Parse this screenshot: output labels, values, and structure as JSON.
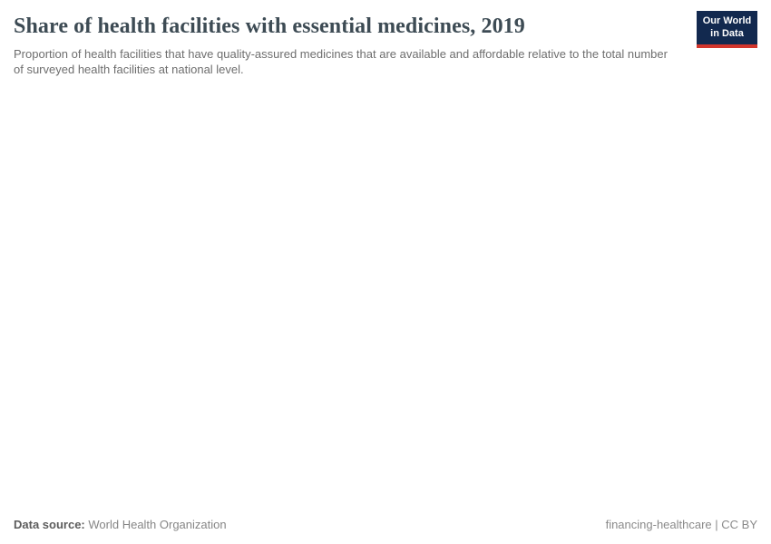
{
  "header": {
    "title": "Share of health facilities with essential medicines, 2019",
    "subtitle": "Proportion of health facilities that have quality-assured medicines that are available and affordable relative to the total number of surveyed health facilities at national level."
  },
  "logo": {
    "line1": "Our World",
    "line2": "in Data",
    "background_color": "#12294f",
    "accent_color": "#d2352c"
  },
  "footer": {
    "data_source_label": "Data source:",
    "data_source_value": "World Health Organization",
    "license_text": "financing-healthcare | CC BY"
  },
  "chart_data": {
    "type": "bar",
    "title": "Share of health facilities with essential medicines, 2019",
    "subtitle": "Proportion of health facilities that have quality-assured medicines that are available and affordable relative to the total number of surveyed health facilities at national level.",
    "categories": [],
    "values": [],
    "xlabel": "",
    "ylabel": "",
    "legend": [],
    "grid": false,
    "rendered_state": "empty"
  }
}
